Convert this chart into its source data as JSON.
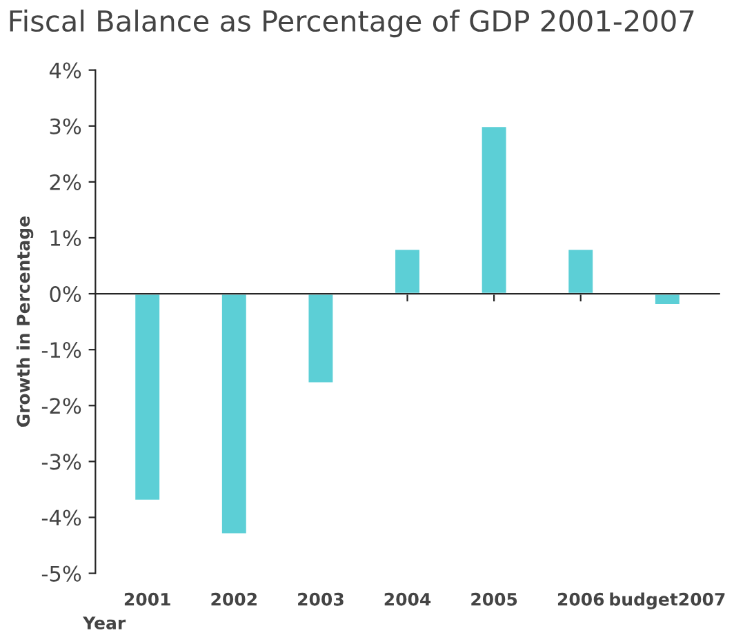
{
  "chart_data": {
    "type": "bar",
    "title": "Fiscal Balance as Percentage of GDP 2001-2007",
    "xlabel": "Year",
    "ylabel": "Growth in Percentage",
    "categories": [
      "2001",
      "2002",
      "2003",
      "2004",
      "2005",
      "2006",
      "budget2007"
    ],
    "values": [
      -3.7,
      -4.3,
      -1.6,
      0.8,
      3.0,
      0.8,
      -0.2
    ],
    "color": "#5ccfd6",
    "ylim": [
      -5,
      4
    ],
    "yticks": [
      {
        "value": -5,
        "label": "-5%"
      },
      {
        "value": -4,
        "label": "-4%"
      },
      {
        "value": -3,
        "label": "-3%"
      },
      {
        "value": -2,
        "label": "-2%"
      },
      {
        "value": -1,
        "label": "-1%"
      },
      {
        "value": 0,
        "label": "0%"
      },
      {
        "value": 1,
        "label": "1%"
      },
      {
        "value": 2,
        "label": "2%"
      },
      {
        "value": 3,
        "label": "3%"
      },
      {
        "value": 4,
        "label": "4%"
      }
    ],
    "legend": false
  }
}
